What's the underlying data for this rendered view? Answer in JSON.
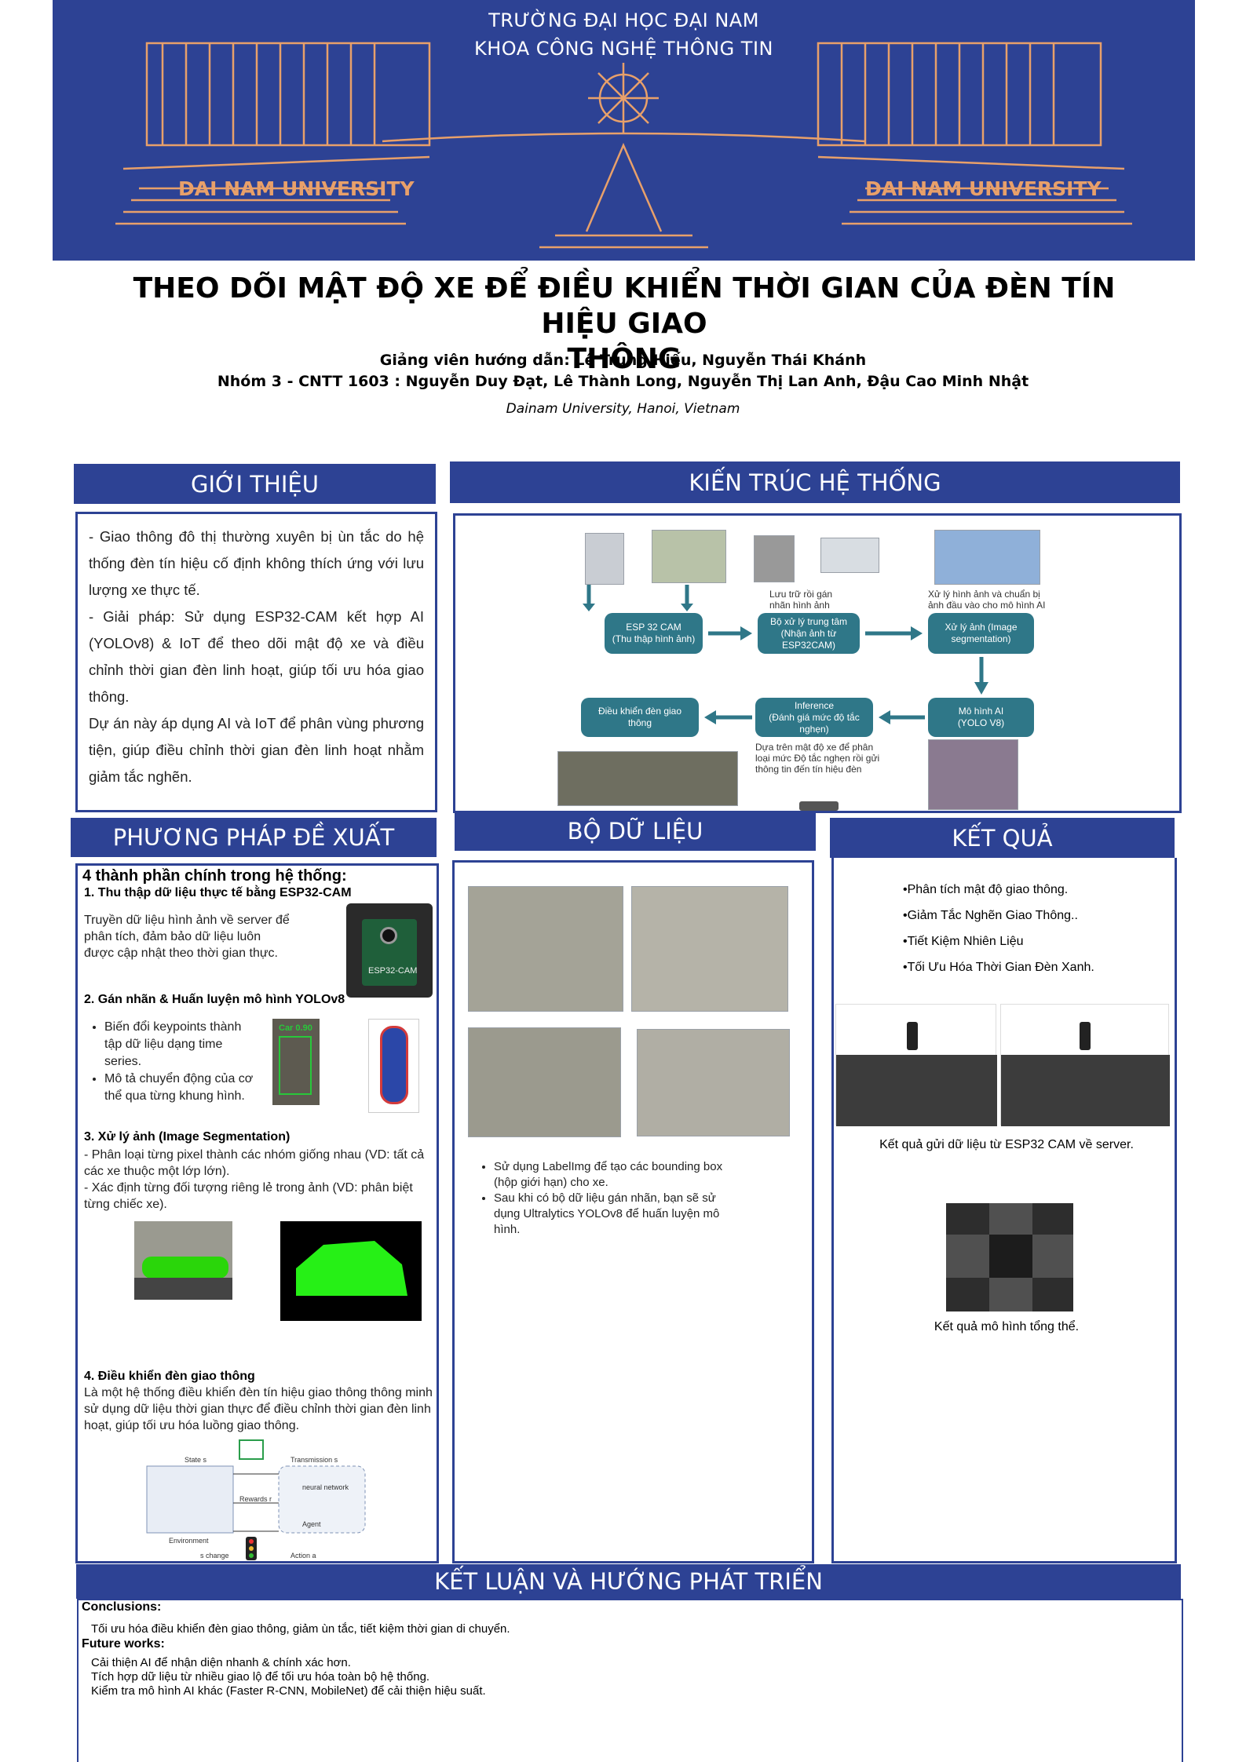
{
  "banner": {
    "line1": "TRƯỜNG ĐẠI HỌC ĐẠI NAM",
    "line2": "KHOA CÔNG NGHỆ THÔNG TIN",
    "watermark_left": "DAI NAM UNIVERSITY",
    "watermark_right": "DAI NAM UNIVERSITY"
  },
  "header": {
    "title_line1": "THEO DÕI MẬT ĐỘ XE ĐỂ ĐIỀU KHIỂN THỜI GIAN CỦA ĐÈN TÍN HIỆU GIAO",
    "title_line2": "THÔNG",
    "advisors": "Giảng viên hướng dẫn: Lê Trung Hiếu, Nguyễn Thái Khánh",
    "group": "Nhóm 3 - CNTT 1603 : Nguyễn Duy Đạt, Lê Thành Long, Nguyễn Thị Lan Anh, Đậu Cao Minh Nhật",
    "affiliation": "Dainam University, Hanoi, Vietnam"
  },
  "intro": {
    "heading": "GIỚI THIỆU",
    "p1": "-  Giao thông đô thị thường xuyên bị ùn tắc do hệ thống đèn tín hiệu cố định không thích ứng với lưu lượng xe thực tế.",
    "p2": "-   Giải pháp: Sử dụng ESP32-CAM kết hợp AI (YOLOv8) & IoT để theo dõi mật độ xe và điều chỉnh thời gian đèn linh hoạt, giúp tối ưu hóa giao thông.",
    "p3": "Dự án này áp dụng AI và IoT để phân vùng phương tiện, giúp điều chỉnh thời gian đèn linh hoạt nhằm giảm tắc nghẽn."
  },
  "architecture": {
    "heading": "KIẾN TRÚC HỆ THỐNG",
    "box_esp": "ESP 32 CAM\n(Thu thập hình ảnh)",
    "box_center": "Bộ xử lý trung tâm\n(Nhận ảnh từ\nESP32CAM)",
    "box_process": "Xử lý ảnh (Image\nsegmentation)",
    "box_model": "Mô hình AI\n(YOLO V8)",
    "box_inference": "Inference\n(Đánh giá mức độ tắc\nnghẹn)",
    "box_control": "Điều khiển đèn giao\nthông",
    "cap_store": "Lưu trữ rồi gán\nnhãn hình ảnh",
    "cap_process": "Xử lý hình ảnh và chuẩn bị\nảnh đầu vào cho mô hình AI",
    "cap_density": "Dựa trên mật độ xe để phân\nloại mức Độ tắc nghẹn rồi gửi\nthông tin đến tín hiệu đèn"
  },
  "method": {
    "heading": "PHƯƠNG PHÁP ĐỀ XUẤT",
    "intro": "4 thành phần chính trong hệ thống:",
    "s1_title": "1.  Thu thập dữ liệu thực tế bằng ESP32-CAM",
    "s1_text": "Truyền dữ liệu hình ảnh về server để phân tích, đảm bảo dữ liệu luôn được cập nhật theo thời gian thực.",
    "esp_label": "ESP32-CAM",
    "s2_title": "2. Gán nhãn & Huấn luyện mô hình YOLOv8",
    "s2_b1": "Biến đổi keypoints thành tập dữ liệu dạng time series.",
    "s2_b2": "Mô tả chuyển động của cơ thể qua từng khung hình.",
    "car_label": "Car 0.90",
    "s3_title": "3. Xử lý ảnh (Image Segmentation)",
    "s3_t1": "- Phân loại từng pixel thành các nhóm giống nhau (VD: tất cả các xe thuộc một lớp lớn).",
    "s3_t2": "- Xác định từng đối tượng riêng lẻ trong ảnh (VD: phân biệt từng chiếc xe).",
    "s4_title": "4. Điều khiển đèn giao thông",
    "s4_text": "Là một hệ thống điều khiển đèn tín hiệu giao thông thông minh sử dụng dữ liệu thời gian thực để điều chỉnh thời gian đèn linh hoạt, giúp tối ưu hóa luồng giao thông.",
    "rl_state": "State s",
    "rl_transmission": "Transmission s",
    "rl_rewards": "Rewards r",
    "rl_environment": "Environment",
    "rl_change": "s change",
    "rl_action": "Action a",
    "rl_agent": "Agent",
    "rl_network": "neural network"
  },
  "dataset": {
    "heading": "BỘ DỮ LIỆU",
    "b1": "Sử dụng LabelImg để tạo các bounding box (hộp giới hạn) cho xe.",
    "b2": "Sau khi có bộ dữ liệu gán nhãn, bạn sẽ sử dụng Ultralytics YOLOv8 để huấn luyện mô hình."
  },
  "results": {
    "heading": "KẾT QUẢ",
    "b1": "•Phân tích mật độ giao thông.",
    "b2": "•Giảm Tắc Nghẽn Giao Thông..",
    "b3": "•Tiết Kiệm Nhiên Liệu",
    "b4": "•Tối Ưu Hóa Thời Gian Đèn Xanh.",
    "cap1": "Kết quả gửi dữ liệu từ ESP32 CAM về server.",
    "cap2": "Kết quả mô hình tổng thể."
  },
  "conclusion": {
    "heading": "KẾT LUẬN VÀ HƯỚNG PHÁT TRIỂN",
    "c_label": "Conclusions:",
    "c_text": "Tối ưu hóa điều khiển đèn giao thông, giảm ùn tắc, tiết kiệm thời gian di chuyển.",
    "f_label": "Future works:",
    "f1": "Cải thiện AI để nhận diện nhanh & chính xác hơn.",
    "f2": "Tích hợp dữ liệu từ nhiều giao lộ để tối ưu hóa toàn bộ hệ thống.",
    "f3": "Kiểm tra mô hình AI khác (Faster R-CNN, MobileNet) để cải thiện hiệu suất."
  }
}
